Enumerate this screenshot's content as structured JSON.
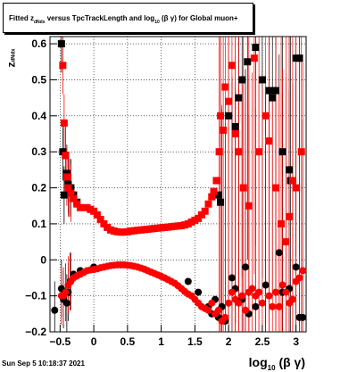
{
  "title": {
    "prefix": "Fitted  z",
    "sub1": "dNdx",
    "middle": "  versus TpcTrackLength and log",
    "sub2": "10",
    "suffix": " (β γ) for Global muon+"
  },
  "ylabel": {
    "main": "z",
    "sub": "dNdx"
  },
  "xlabel": {
    "main": "log",
    "sub": "10",
    "suffix": " (β γ)"
  },
  "datestamp": "Sun Sep  5 10:18:37 2021",
  "chart_data": {
    "type": "scatter",
    "title": "Fitted z_dNdx versus TpcTrackLength and log10(β γ) for Global muon+",
    "xlabel": "log10 (β γ)",
    "ylabel": "z_dNdx",
    "xlim": [
      -0.65,
      3.15
    ],
    "ylim": [
      -0.2,
      0.62
    ],
    "x_ticks": [
      -0.5,
      0,
      0.5,
      1,
      1.5,
      2,
      2.5,
      3
    ],
    "x_tick_labels": [
      "−0.5",
      "0",
      "0.5",
      "1",
      "1.5",
      "2",
      "2.5",
      "3"
    ],
    "y_ticks": [
      -0.2,
      -0.1,
      0,
      0.1,
      0.2,
      0.3,
      0.4,
      0.5,
      0.6
    ],
    "y_tick_labels": [
      "−0.2",
      "−0.1",
      "0",
      "0.1",
      "0.2",
      "0.3",
      "0.4",
      "0.5",
      "0.6"
    ],
    "grid": true,
    "series": [
      {
        "marker": "square",
        "color": "#000000",
        "points": [
          [
            -0.48,
            0.6
          ],
          [
            -0.46,
            0.3
          ],
          [
            -0.44,
            0.18
          ],
          [
            -0.42,
            0.29
          ],
          [
            -0.4,
            0.24
          ],
          [
            -0.38,
            0.21
          ],
          [
            -0.36,
            0.2
          ],
          [
            -0.34,
            0.2
          ],
          [
            -0.3,
            0.18
          ],
          [
            -0.25,
            0.16
          ],
          [
            1.82,
            0.22
          ],
          [
            1.85,
            0.18
          ],
          [
            1.88,
            0.16
          ],
          [
            2.0,
            0.4
          ],
          [
            2.1,
            0.37
          ],
          [
            2.15,
            0.45
          ],
          [
            2.2,
            0.5
          ],
          [
            2.28,
            0.55
          ],
          [
            2.4,
            0.59
          ],
          [
            2.5,
            0.5
          ],
          [
            2.6,
            0.47
          ],
          [
            2.65,
            0.45
          ],
          [
            2.7,
            0.47
          ],
          [
            2.8,
            0.3
          ],
          [
            2.9,
            0.25
          ],
          [
            2.92,
            0.22
          ],
          [
            3.0,
            0.56
          ],
          [
            3.05,
            0.56
          ]
        ]
      },
      {
        "marker": "square",
        "color": "#ff0000",
        "points": [
          [
            -0.46,
            0.54
          ],
          [
            -0.44,
            0.38
          ],
          [
            -0.42,
            0.29
          ],
          [
            -0.4,
            0.23
          ],
          [
            -0.38,
            0.2
          ],
          [
            -0.34,
            0.185
          ],
          [
            -0.3,
            0.17
          ],
          [
            -0.25,
            0.155
          ],
          [
            -0.2,
            0.145
          ],
          [
            -0.1,
            0.145
          ],
          [
            -0.05,
            0.14
          ],
          [
            0.0,
            0.135
          ],
          [
            0.05,
            0.125
          ],
          [
            0.1,
            0.112
          ],
          [
            0.15,
            0.1
          ],
          [
            0.2,
            0.09
          ],
          [
            0.25,
            0.083
          ],
          [
            0.3,
            0.08
          ],
          [
            0.35,
            0.078
          ],
          [
            0.4,
            0.077
          ],
          [
            0.45,
            0.077
          ],
          [
            0.5,
            0.078
          ],
          [
            0.55,
            0.08
          ],
          [
            0.6,
            0.081
          ],
          [
            0.65,
            0.082
          ],
          [
            0.7,
            0.083
          ],
          [
            0.75,
            0.084
          ],
          [
            0.8,
            0.085
          ],
          [
            0.85,
            0.086
          ],
          [
            0.9,
            0.087
          ],
          [
            0.95,
            0.088
          ],
          [
            1.0,
            0.089
          ],
          [
            1.05,
            0.09
          ],
          [
            1.1,
            0.091
          ],
          [
            1.15,
            0.092
          ],
          [
            1.2,
            0.093
          ],
          [
            1.25,
            0.094
          ],
          [
            1.3,
            0.095
          ],
          [
            1.35,
            0.097
          ],
          [
            1.4,
            0.1
          ],
          [
            1.45,
            0.105
          ],
          [
            1.5,
            0.11
          ],
          [
            1.55,
            0.115
          ],
          [
            1.6,
            0.125
          ],
          [
            1.65,
            0.135
          ],
          [
            1.7,
            0.155
          ],
          [
            1.75,
            0.175
          ],
          [
            1.78,
            0.19
          ],
          [
            1.82,
            0.22
          ],
          [
            1.86,
            0.3
          ],
          [
            1.88,
            0.4
          ],
          [
            1.92,
            0.36
          ],
          [
            1.95,
            0.48
          ],
          [
            2.0,
            0.44
          ],
          [
            2.05,
            0.54
          ],
          [
            2.1,
            0.35
          ],
          [
            2.15,
            0.3
          ],
          [
            2.22,
            0.2
          ],
          [
            2.3,
            0.15
          ],
          [
            2.38,
            0.56
          ],
          [
            2.45,
            0.3
          ],
          [
            2.55,
            0.4
          ],
          [
            2.6,
            0.33
          ],
          [
            2.7,
            0.2
          ],
          [
            2.78,
            0.1
          ],
          [
            2.85,
            0.05
          ],
          [
            2.9,
            0.12
          ],
          [
            2.95,
            0.22
          ],
          [
            3.0,
            0.2
          ],
          [
            3.08,
            0.3
          ]
        ]
      },
      {
        "marker": "circle",
        "color": "#000000",
        "points": [
          [
            -0.58,
            -0.14
          ],
          [
            -0.48,
            -0.08
          ],
          [
            -0.45,
            -0.11
          ],
          [
            -0.42,
            -0.09
          ],
          [
            -0.4,
            -0.12
          ],
          [
            -0.38,
            -0.09
          ],
          [
            -0.35,
            -0.06
          ],
          [
            -0.3,
            -0.04
          ],
          [
            -0.2,
            -0.03
          ],
          [
            0.0,
            -0.02
          ],
          [
            1.4,
            -0.06
          ],
          [
            1.55,
            -0.09
          ],
          [
            1.7,
            -0.13
          ],
          [
            1.75,
            -0.15
          ],
          [
            1.8,
            -0.11
          ],
          [
            1.85,
            -0.16
          ],
          [
            1.9,
            -0.13
          ],
          [
            1.95,
            -0.17
          ],
          [
            2.05,
            -0.05
          ],
          [
            2.1,
            -0.08
          ],
          [
            2.2,
            -0.11
          ],
          [
            2.25,
            -0.02
          ],
          [
            2.3,
            -0.15
          ],
          [
            2.4,
            -0.13
          ],
          [
            2.55,
            -0.07
          ],
          [
            2.75,
            0.02
          ],
          [
            2.8,
            -0.09
          ],
          [
            2.9,
            -0.08
          ],
          [
            3.0,
            -0.02
          ],
          [
            3.05,
            -0.16
          ],
          [
            3.1,
            -0.16
          ]
        ]
      },
      {
        "marker": "circle",
        "color": "#ff0000",
        "points": [
          [
            -0.48,
            -0.1
          ],
          [
            -0.45,
            -0.1
          ],
          [
            -0.42,
            -0.09
          ],
          [
            -0.38,
            -0.07
          ],
          [
            -0.34,
            -0.06
          ],
          [
            -0.3,
            -0.05
          ],
          [
            -0.25,
            -0.045
          ],
          [
            -0.2,
            -0.04
          ],
          [
            -0.15,
            -0.035
          ],
          [
            -0.1,
            -0.03
          ],
          [
            -0.05,
            -0.028
          ],
          [
            0.0,
            -0.027
          ],
          [
            0.05,
            -0.025
          ],
          [
            0.1,
            -0.022
          ],
          [
            0.15,
            -0.02
          ],
          [
            0.2,
            -0.018
          ],
          [
            0.25,
            -0.016
          ],
          [
            0.3,
            -0.015
          ],
          [
            0.35,
            -0.014
          ],
          [
            0.4,
            -0.014
          ],
          [
            0.45,
            -0.014
          ],
          [
            0.5,
            -0.015
          ],
          [
            0.55,
            -0.016
          ],
          [
            0.6,
            -0.018
          ],
          [
            0.65,
            -0.02
          ],
          [
            0.7,
            -0.023
          ],
          [
            0.75,
            -0.026
          ],
          [
            0.8,
            -0.03
          ],
          [
            0.85,
            -0.034
          ],
          [
            0.9,
            -0.038
          ],
          [
            0.95,
            -0.042
          ],
          [
            1.0,
            -0.046
          ],
          [
            1.05,
            -0.05
          ],
          [
            1.1,
            -0.055
          ],
          [
            1.15,
            -0.06
          ],
          [
            1.2,
            -0.065
          ],
          [
            1.25,
            -0.072
          ],
          [
            1.3,
            -0.08
          ],
          [
            1.35,
            -0.088
          ],
          [
            1.4,
            -0.095
          ],
          [
            1.45,
            -0.1
          ],
          [
            1.5,
            -0.11
          ],
          [
            1.55,
            -0.12
          ],
          [
            1.6,
            -0.13
          ],
          [
            1.65,
            -0.135
          ],
          [
            1.7,
            -0.14
          ],
          [
            1.75,
            -0.12
          ],
          [
            1.8,
            -0.15
          ],
          [
            1.85,
            -0.14
          ],
          [
            1.9,
            -0.17
          ],
          [
            1.95,
            -0.16
          ],
          [
            2.0,
            -0.12
          ],
          [
            2.05,
            -0.09
          ],
          [
            2.1,
            -0.11
          ],
          [
            2.15,
            -0.12
          ],
          [
            2.2,
            -0.1
          ],
          [
            2.25,
            -0.14
          ],
          [
            2.3,
            -0.09
          ],
          [
            2.35,
            -0.08
          ],
          [
            2.4,
            -0.1
          ],
          [
            2.45,
            -0.09
          ],
          [
            2.5,
            -0.12
          ],
          [
            2.6,
            -0.1
          ],
          [
            2.65,
            -0.13
          ],
          [
            2.7,
            -0.09
          ],
          [
            2.75,
            -0.13
          ],
          [
            2.8,
            -0.07
          ],
          [
            2.85,
            -0.09
          ],
          [
            2.9,
            -0.12
          ],
          [
            2.95,
            -0.11
          ],
          [
            3.0,
            -0.06
          ],
          [
            3.05,
            -0.05
          ],
          [
            3.1,
            -0.03
          ]
        ]
      }
    ]
  }
}
